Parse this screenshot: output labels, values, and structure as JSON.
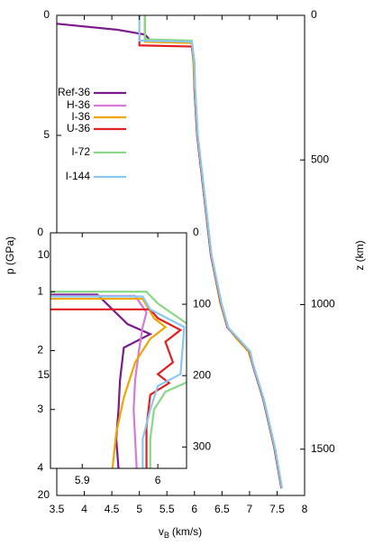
{
  "chart_data": [
    {
      "type": "line",
      "xlabel": [
        "v",
        "B",
        "(km/s)"
      ],
      "ylabel": "p (GPa)",
      "y2label": "z (km)",
      "xlim": [
        3.5,
        8
      ],
      "xticks": [
        3.5,
        4,
        4.5,
        5,
        5.5,
        6,
        6.5,
        7,
        7.5,
        8
      ],
      "ylim": [
        0,
        20
      ],
      "yticks": [
        0,
        5,
        10,
        15,
        20
      ],
      "y2lim": [
        0,
        1660
      ],
      "y2ticks": [
        0,
        500,
        1000,
        1500
      ],
      "series": [
        {
          "name": "Ref-36",
          "color": "#7b1a8a",
          "y": [
            0.35,
            0.6,
            0.8,
            1.05,
            1.1,
            2,
            3,
            5,
            8,
            10,
            12,
            13,
            13.5,
            14,
            14.5,
            16,
            18,
            19.7
          ],
          "values": [
            3.5,
            4.6,
            5.1,
            5.2,
            5.95,
            6.0,
            6.0,
            6.05,
            6.2,
            6.3,
            6.48,
            6.6,
            6.8,
            7.0,
            7.05,
            7.25,
            7.45,
            7.58
          ]
        },
        {
          "name": "H-36",
          "color": "#d77ad7",
          "y": [
            0,
            1.05,
            1.1,
            2,
            3,
            5,
            8,
            10,
            12,
            13,
            13.5,
            14,
            14.5,
            16,
            18,
            19.7
          ],
          "values": [
            5.1,
            5.1,
            5.95,
            6.0,
            6.0,
            6.05,
            6.2,
            6.3,
            6.48,
            6.6,
            6.8,
            7.0,
            7.05,
            7.25,
            7.45,
            7.58
          ]
        },
        {
          "name": "I-36",
          "color": "#f0a500",
          "y": [
            0,
            1.1,
            1.15,
            2,
            3,
            5,
            8,
            10,
            12,
            13,
            13.5,
            14,
            14.5,
            16,
            18,
            19.7
          ],
          "values": [
            5.1,
            5.1,
            5.95,
            5.98,
            6.0,
            6.05,
            6.2,
            6.3,
            6.47,
            6.6,
            6.78,
            6.98,
            7.05,
            7.25,
            7.45,
            7.58
          ]
        },
        {
          "name": "U-36",
          "color": "#e02020",
          "y": [
            0.8,
            1.25,
            1.3,
            2,
            3,
            5,
            8,
            10,
            12,
            13,
            13.5,
            14,
            14.5,
            16,
            18,
            19.7
          ],
          "values": [
            5.0,
            5.0,
            5.95,
            6.0,
            6.0,
            6.05,
            6.2,
            6.3,
            6.48,
            6.6,
            6.8,
            7.0,
            7.05,
            7.25,
            7.45,
            7.58
          ]
        },
        {
          "name": "I-72",
          "color": "#88d888",
          "y": [
            0,
            1.0,
            1.05,
            2,
            3,
            5,
            8,
            10,
            12,
            13,
            13.5,
            14,
            14.5,
            16,
            18,
            19.7
          ],
          "values": [
            5.1,
            5.1,
            5.95,
            6.0,
            6.01,
            6.06,
            6.21,
            6.31,
            6.49,
            6.61,
            6.81,
            7.01,
            7.06,
            7.26,
            7.46,
            7.59
          ]
        },
        {
          "name": "I-144",
          "color": "#88c8f0",
          "y": [
            0,
            1.05,
            1.1,
            2,
            3,
            5,
            8,
            10,
            12,
            13,
            13.5,
            14,
            14.5,
            16,
            18,
            19.7
          ],
          "values": [
            5.0,
            5.0,
            5.95,
            6.0,
            6.01,
            6.06,
            6.21,
            6.31,
            6.49,
            6.61,
            6.81,
            7.01,
            7.06,
            7.26,
            7.46,
            7.59
          ]
        }
      ]
    },
    {
      "type": "line",
      "xlim": [
        5.858,
        6.038
      ],
      "xticks": [
        5.9,
        6
      ],
      "ylim": [
        0,
        4
      ],
      "yticks": [
        0,
        1,
        2,
        3,
        4
      ],
      "y2lim": [
        0,
        330
      ],
      "y2ticks": [
        0,
        100,
        200,
        300
      ],
      "series": [
        {
          "color": "#7b1a8a",
          "y": [
            1.05,
            1.05,
            1.55,
            1.72,
            1.95,
            2.5,
            3.0,
            3.5,
            4.0
          ],
          "values": [
            5.858,
            5.92,
            5.96,
            5.99,
            5.955,
            5.95,
            5.948,
            5.945,
            5.948
          ]
        },
        {
          "color": "#d77ad7",
          "y": [
            1.07,
            1.07,
            1.35,
            1.6,
            2.0,
            2.5,
            3.0,
            3.5,
            4.0
          ],
          "values": [
            5.858,
            5.97,
            5.985,
            5.98,
            5.975,
            5.97,
            5.968,
            5.97,
            5.972
          ]
        },
        {
          "color": "#f0a500",
          "y": [
            1.12,
            1.12,
            1.45,
            1.6,
            1.8,
            2.2,
            2.8,
            3.4,
            4.0
          ],
          "values": [
            5.858,
            5.98,
            5.995,
            6.01,
            5.99,
            5.97,
            5.955,
            5.945,
            5.94
          ]
        },
        {
          "color": "#e02020",
          "y": [
            1.3,
            1.3,
            1.45,
            1.65,
            1.85,
            2.2,
            2.4,
            2.55,
            2.75,
            3.3,
            4.0
          ],
          "values": [
            5.858,
            5.99,
            6.0,
            6.03,
            6.01,
            6.02,
            6.0,
            6.015,
            5.99,
            5.985,
            5.985
          ]
        },
        {
          "color": "#88d888",
          "y": [
            1.0,
            1.0,
            1.2,
            1.6,
            2.5,
            2.7,
            3.0,
            3.5,
            4.0
          ],
          "values": [
            5.858,
            5.985,
            6.0,
            6.045,
            6.045,
            6.01,
            5.995,
            5.99,
            5.99
          ]
        },
        {
          "color": "#88c8f0",
          "y": [
            1.08,
            1.08,
            1.3,
            1.6,
            2.4,
            2.6,
            3.0,
            3.5,
            4.0
          ],
          "values": [
            5.858,
            5.98,
            5.99,
            6.035,
            6.03,
            6.0,
            5.99,
            5.98,
            5.98
          ]
        }
      ]
    }
  ]
}
